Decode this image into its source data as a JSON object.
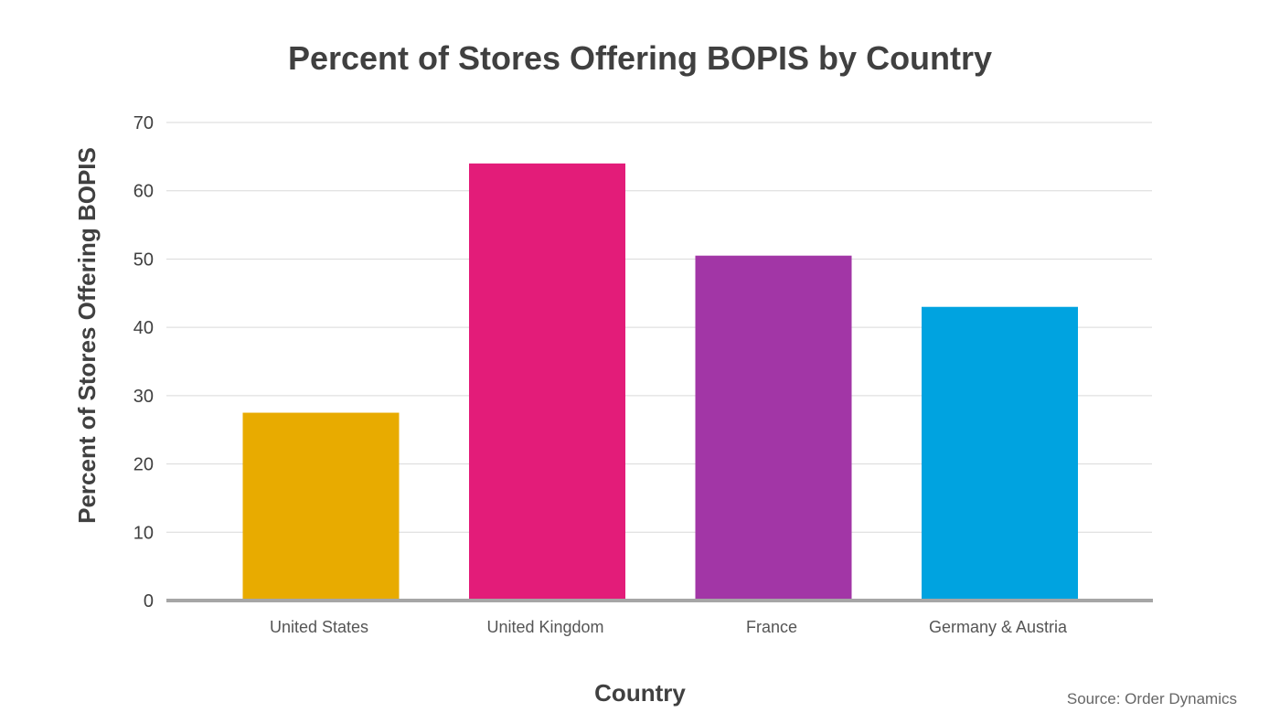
{
  "chart_data": {
    "type": "bar",
    "title": "Percent of Stores Offering BOPIS by Country",
    "xlabel": "Country",
    "ylabel": "Percent of Stores Offering BOPIS",
    "categories": [
      "United States",
      "United Kingdom",
      "France",
      "Germany & Austria"
    ],
    "values": [
      27.5,
      64,
      50.5,
      43
    ],
    "colors": [
      "#E8AB00",
      "#E31C79",
      "#A236A6",
      "#00A3E0"
    ],
    "ylim": [
      0,
      70
    ],
    "yticks": [
      "0",
      "10",
      "20",
      "30",
      "40",
      "50",
      "60",
      "70"
    ],
    "grid": true,
    "legend": "none"
  },
  "source": "Source: Order Dynamics"
}
